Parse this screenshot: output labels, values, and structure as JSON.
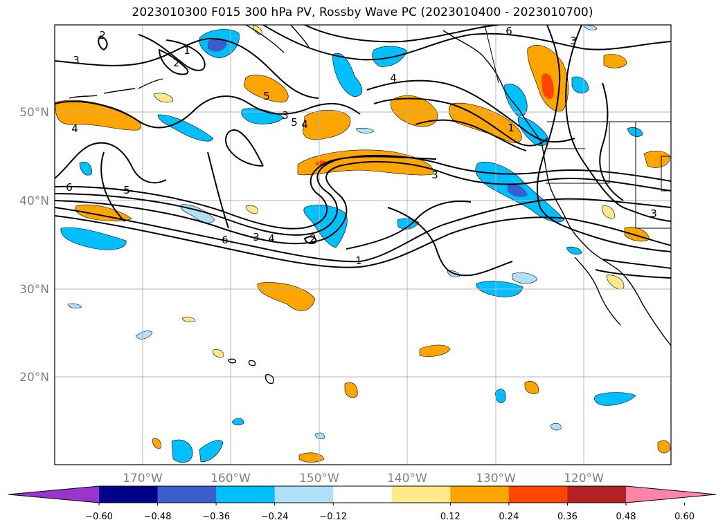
{
  "title": "2023010300 F015 300 hPa PV, Rossby Wave PC (2023010400 - 2023010700)",
  "map": {
    "lat_labels": [
      "50°N",
      "40°N",
      "30°N",
      "20°N"
    ],
    "lon_labels": [
      "170°W",
      "160°W",
      "150°W",
      "140°W",
      "130°W",
      "120°W"
    ],
    "contour_labels": [
      "2",
      "3",
      "4",
      "5",
      "6",
      "1",
      "2",
      "3",
      "4",
      "5",
      "6",
      "1",
      "2",
      "3",
      "4",
      "5",
      "6",
      "3",
      "1",
      "3",
      "4",
      "3"
    ]
  },
  "colorbar": {
    "ticks": [
      "−0.60",
      "−0.48",
      "−0.36",
      "−0.24",
      "−0.12",
      "0.12",
      "0.24",
      "0.36",
      "0.48",
      "0.60"
    ],
    "colors": [
      "#9a35cc",
      "#00008b",
      "#3a5fcd",
      "#00bfff",
      "#b0e0f8",
      "#ffffff",
      "#ffe98a",
      "#ffa500",
      "#ff4500",
      "#b22222",
      "#ff85a8"
    ]
  },
  "palette": {
    "neg_light": "#b0e0f8",
    "neg_mid": "#00bfff",
    "neg_dark": "#3a5fcd",
    "pos_light": "#ffe98a",
    "pos_mid": "#ffa500",
    "pos_dark": "#ff4500",
    "grid": "#b4b4b4"
  }
}
